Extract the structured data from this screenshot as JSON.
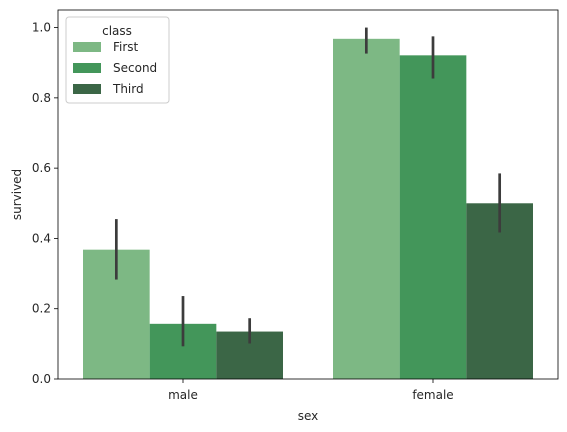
{
  "chart_data": {
    "type": "bar",
    "xlabel": "sex",
    "ylabel": "survived",
    "categories": [
      "male",
      "female"
    ],
    "ylim": [
      0,
      1.05
    ],
    "yticks": [
      0.0,
      0.2,
      0.4,
      0.6,
      0.8,
      1.0
    ],
    "ytick_labels": [
      "0.0",
      "0.2",
      "0.4",
      "0.6",
      "0.8",
      "1.0"
    ],
    "grid": false,
    "legend": {
      "title": "class",
      "placement": "top-left"
    },
    "error_bar_color": "#3c3c3c",
    "series": [
      {
        "name": "First",
        "color": "#7db884",
        "values": [
          0.368,
          0.968
        ],
        "ci_low": [
          0.283,
          0.926
        ],
        "ci_high": [
          0.455,
          1.0
        ]
      },
      {
        "name": "Second",
        "color": "#43965a",
        "values": [
          0.157,
          0.921
        ],
        "ci_low": [
          0.093,
          0.855
        ],
        "ci_high": [
          0.236,
          0.975
        ]
      },
      {
        "name": "Third",
        "color": "#3b6646",
        "values": [
          0.135,
          0.5
        ],
        "ci_low": [
          0.101,
          0.417
        ],
        "ci_high": [
          0.173,
          0.585
        ]
      }
    ]
  }
}
